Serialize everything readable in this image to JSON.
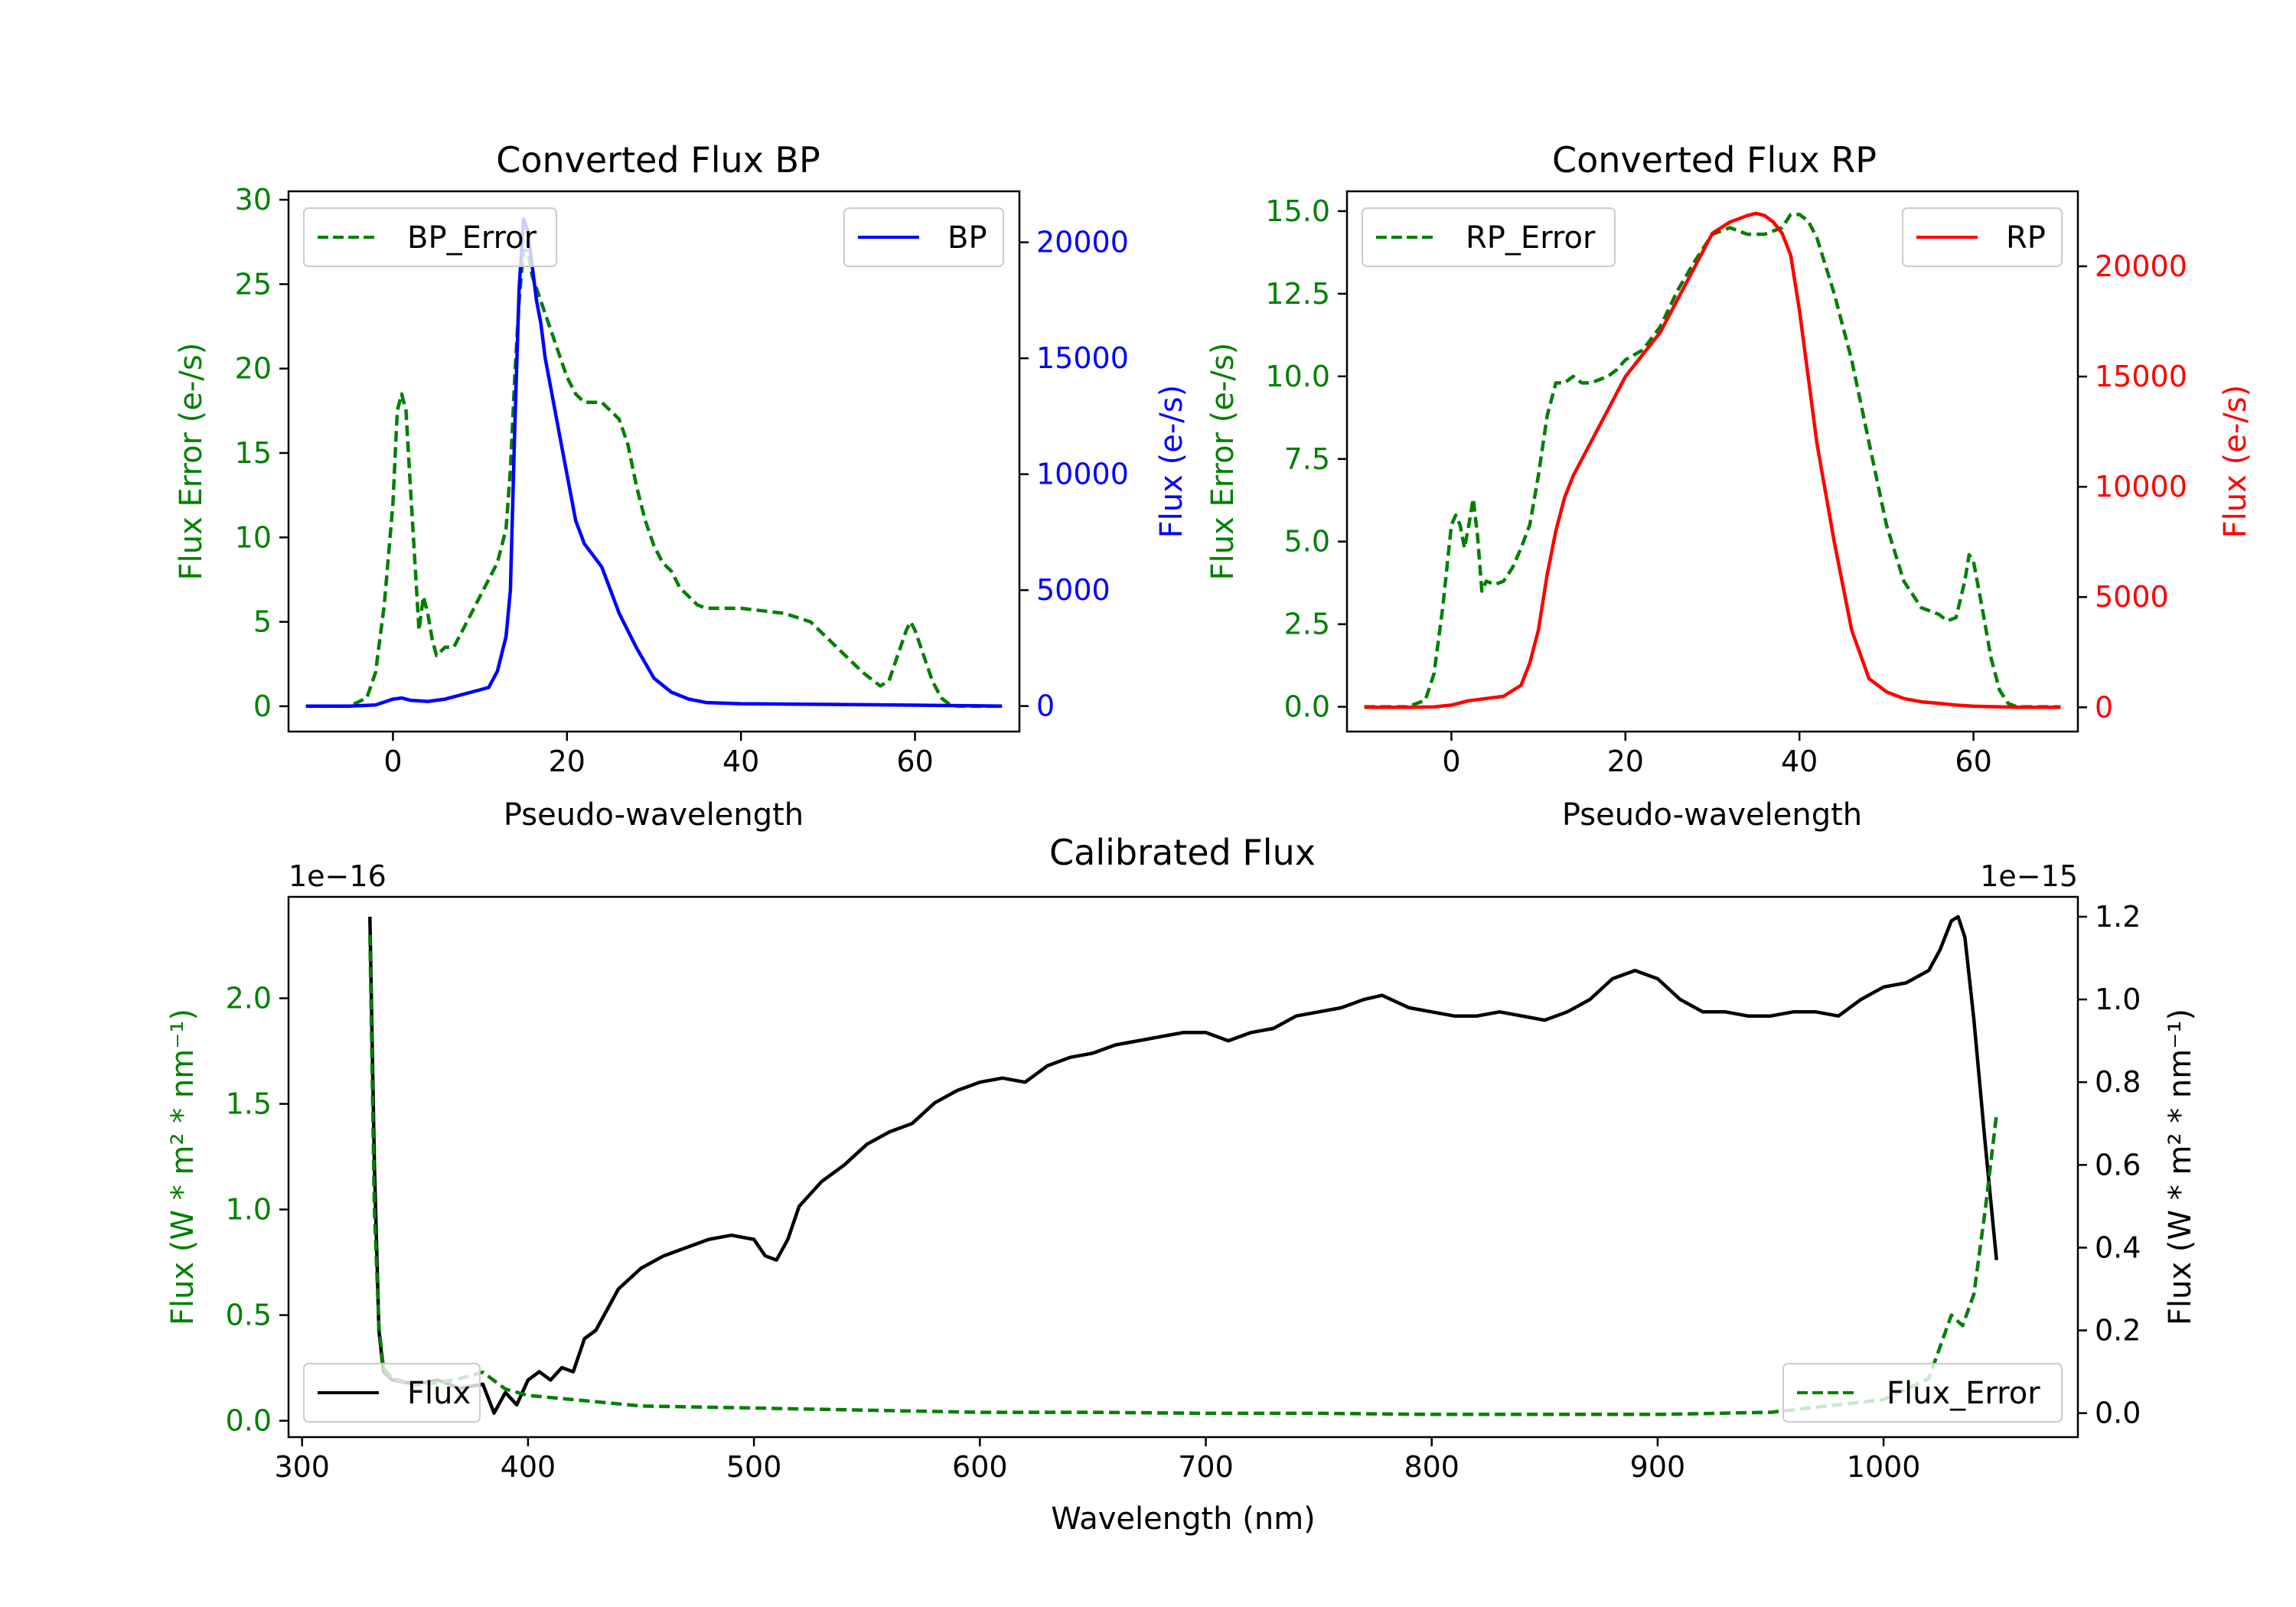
{
  "colors": {
    "error": "#008000",
    "bp": "#0000ff",
    "rp": "#ff0000",
    "flux": "#000000"
  },
  "chart_data": [
    {
      "id": "bp",
      "type": "line",
      "title": "Converted Flux BP",
      "xlabel": "Pseudo-wavelength",
      "ylabel_left": "Flux Error (e-/s)",
      "ylabel_right": "Flux (e-/s)",
      "xlim": [
        -12,
        72
      ],
      "ylim_left": [
        -1.5,
        30.5
      ],
      "ylim_right": [
        -1100,
        22200
      ],
      "xticks": [
        0,
        20,
        40,
        60
      ],
      "xtick_labels": [
        "0",
        "20",
        "40",
        "60"
      ],
      "yticks_left": [
        0,
        5,
        10,
        15,
        20,
        25,
        30
      ],
      "ytick_labels_left": [
        "0",
        "5",
        "10",
        "15",
        "20",
        "25",
        "30"
      ],
      "yticks_right": [
        0,
        5000,
        10000,
        15000,
        20000
      ],
      "ytick_labels_right": [
        "0",
        "5000",
        "10000",
        "15000",
        "20000"
      ],
      "legend_left": "BP_Error",
      "legend_right": "BP",
      "error_series": {
        "name": "BP_Error",
        "x": [
          -10,
          -5,
          -3,
          -2,
          -1,
          0,
          0.5,
          1,
          1.5,
          2,
          3,
          3.5,
          4,
          4.5,
          5,
          6,
          7,
          8,
          9,
          10,
          11,
          12,
          13,
          13.5,
          14,
          14.5,
          15,
          15.5,
          16,
          17,
          18,
          19,
          20,
          21,
          22,
          23,
          24,
          25,
          26,
          27,
          28,
          29,
          30,
          31,
          32,
          33,
          34,
          35,
          36,
          37,
          38,
          40,
          45,
          48,
          50,
          52,
          54,
          56,
          57,
          58,
          59,
          59.5,
          60,
          61,
          62,
          63,
          64,
          65,
          66,
          70
        ],
        "values": [
          0,
          0,
          0.5,
          2,
          6,
          12,
          17.5,
          18.5,
          17.5,
          13,
          4.5,
          6.5,
          5.5,
          4,
          3,
          3.5,
          3.5,
          4.5,
          5.5,
          6.5,
          7.5,
          8.5,
          10.5,
          14,
          19.5,
          24,
          27,
          27,
          25.5,
          24,
          22.5,
          21,
          19.5,
          18.5,
          18,
          18,
          18,
          17.5,
          17,
          15.5,
          13,
          11,
          9.5,
          8.5,
          8,
          7,
          6.5,
          6,
          5.8,
          5.8,
          5.8,
          5.8,
          5.5,
          5,
          4,
          3,
          2,
          1.2,
          1.5,
          3,
          4.5,
          5,
          4.5,
          3,
          1.5,
          0.5,
          0.1,
          0,
          0,
          0
        ]
      },
      "flux_series": {
        "name": "BP",
        "x": [
          -10,
          -5,
          -2,
          0,
          1,
          2,
          4,
          6,
          8,
          10,
          11,
          12,
          13,
          13.5,
          14,
          14.5,
          15,
          15.5,
          16,
          16.5,
          17,
          17.5,
          18,
          19,
          20,
          21,
          22,
          23,
          24,
          25,
          26,
          28,
          30,
          32,
          34,
          36,
          40,
          50,
          60,
          65,
          70
        ],
        "values": [
          0,
          0,
          50,
          300,
          350,
          250,
          200,
          300,
          500,
          700,
          800,
          1500,
          3000,
          5000,
          12000,
          18000,
          21000,
          20500,
          19000,
          17500,
          16500,
          15000,
          14000,
          12000,
          10000,
          8000,
          7000,
          6500,
          6000,
          5000,
          4000,
          2500,
          1200,
          600,
          300,
          150,
          100,
          70,
          40,
          20,
          0
        ]
      }
    },
    {
      "id": "rp",
      "type": "line",
      "title": "Converted Flux RP",
      "xlabel": "Pseudo-wavelength",
      "ylabel_left": "Flux Error (e-/s)",
      "ylabel_right": "Flux (e-/s)",
      "xlim": [
        -12,
        72
      ],
      "ylim_left": [
        -0.75,
        15.6
      ],
      "ylim_right": [
        -1100,
        23400
      ],
      "xticks": [
        0,
        20,
        40,
        60
      ],
      "xtick_labels": [
        "0",
        "20",
        "40",
        "60"
      ],
      "yticks_left": [
        0,
        2.5,
        5,
        7.5,
        10,
        12.5,
        15
      ],
      "ytick_labels_left": [
        "0.0",
        "2.5",
        "5.0",
        "7.5",
        "10.0",
        "12.5",
        "15.0"
      ],
      "yticks_right": [
        0,
        5000,
        10000,
        15000,
        20000
      ],
      "ytick_labels_right": [
        "0",
        "5000",
        "10000",
        "15000",
        "20000"
      ],
      "legend_left": "RP_Error",
      "legend_right": "RP",
      "error_series": {
        "name": "RP_Error",
        "x": [
          -10,
          -5,
          -3,
          -2,
          -1,
          0,
          0.5,
          1,
          1.5,
          2,
          2.5,
          3,
          3.5,
          4,
          5,
          6,
          7,
          8,
          9,
          10,
          11,
          12,
          13,
          14,
          15,
          16,
          17,
          18,
          19,
          20,
          22,
          24,
          26,
          28,
          30,
          32,
          34,
          36,
          38,
          39,
          40,
          41,
          42,
          44,
          46,
          48,
          50,
          52,
          54,
          56,
          57,
          58,
          59,
          59.5,
          60,
          61,
          62,
          63,
          64,
          65,
          70
        ],
        "values": [
          0,
          0,
          0.2,
          1,
          3,
          5.5,
          5.8,
          5.5,
          4.8,
          5.5,
          6.3,
          5.2,
          3.5,
          3.8,
          3.7,
          3.8,
          4.2,
          4.8,
          5.5,
          7,
          8.8,
          9.8,
          9.8,
          10,
          9.8,
          9.8,
          9.9,
          10,
          10.2,
          10.5,
          10.8,
          11.5,
          12.6,
          13.5,
          14.3,
          14.5,
          14.3,
          14.3,
          14.5,
          14.9,
          14.9,
          14.7,
          14.2,
          12.5,
          10.5,
          8,
          5.5,
          3.8,
          3,
          2.8,
          2.6,
          2.7,
          3.8,
          4.6,
          4.4,
          3,
          1.5,
          0.5,
          0.1,
          0,
          0
        ]
      },
      "flux_series": {
        "name": "RP",
        "x": [
          -10,
          -5,
          -2,
          0,
          2,
          4,
          6,
          8,
          9,
          10,
          11,
          12,
          13,
          14,
          16,
          18,
          20,
          22,
          24,
          26,
          28,
          30,
          32,
          34,
          35,
          36,
          37,
          38,
          39,
          40,
          41,
          42,
          44,
          46,
          48,
          50,
          52,
          54,
          56,
          58,
          60,
          65,
          70
        ],
        "values": [
          0,
          0,
          20,
          100,
          300,
          400,
          500,
          1000,
          2000,
          3500,
          6000,
          8000,
          9500,
          10500,
          12000,
          13500,
          15000,
          16000,
          17000,
          18500,
          20000,
          21500,
          22000,
          22300,
          22400,
          22300,
          22000,
          21500,
          20500,
          18000,
          15000,
          12000,
          7500,
          3500,
          1300,
          700,
          400,
          250,
          180,
          100,
          50,
          0,
          0
        ]
      }
    },
    {
      "id": "calibrated",
      "type": "line",
      "title": "Calibrated Flux",
      "xlabel": "Wavelength (nm)",
      "ylabel_left": "Flux (W * m² * nm⁻¹)",
      "ylabel_right": "Flux (W * m² * nm⁻¹)",
      "offset_left": "1e−16",
      "offset_right": "1e−15",
      "xlim": [
        294,
        1086
      ],
      "ylim_left": [
        -0.0775,
        2.48
      ],
      "ylim_right": [
        -0.058,
        1.248
      ],
      "xticks": [
        300,
        400,
        500,
        600,
        700,
        800,
        900,
        1000
      ],
      "xtick_labels": [
        "300",
        "400",
        "500",
        "600",
        "700",
        "800",
        "900",
        "1000"
      ],
      "yticks_left": [
        0,
        0.5,
        1.0,
        1.5,
        2.0
      ],
      "ytick_labels_left": [
        "0.0",
        "0.5",
        "1.0",
        "1.5",
        "2.0"
      ],
      "yticks_right": [
        0,
        0.2,
        0.4,
        0.6,
        0.8,
        1.0,
        1.2
      ],
      "ytick_labels_right": [
        "0.0",
        "0.2",
        "0.4",
        "0.6",
        "0.8",
        "1.0",
        "1.2"
      ],
      "legend_left": "Flux",
      "legend_right": "Flux_Error",
      "flux_series": {
        "name": "Flux",
        "x": [
          330,
          332,
          334,
          336,
          340,
          350,
          360,
          370,
          380,
          385,
          390,
          395,
          400,
          405,
          410,
          415,
          420,
          425,
          430,
          440,
          450,
          460,
          470,
          480,
          490,
          500,
          505,
          510,
          515,
          520,
          530,
          540,
          550,
          560,
          570,
          580,
          590,
          600,
          610,
          620,
          630,
          640,
          650,
          660,
          670,
          680,
          690,
          700,
          710,
          720,
          730,
          740,
          750,
          760,
          770,
          778,
          790,
          800,
          810,
          820,
          830,
          840,
          850,
          860,
          870,
          880,
          890,
          900,
          910,
          920,
          930,
          940,
          950,
          960,
          970,
          980,
          990,
          1000,
          1010,
          1020,
          1025,
          1030,
          1033,
          1036,
          1040,
          1045,
          1050
        ],
        "values": [
          1.2,
          0.6,
          0.2,
          0.1,
          0.08,
          0.07,
          0.08,
          0.06,
          0.07,
          0.0,
          0.05,
          0.02,
          0.08,
          0.1,
          0.08,
          0.11,
          0.1,
          0.18,
          0.2,
          0.3,
          0.35,
          0.38,
          0.4,
          0.42,
          0.43,
          0.42,
          0.38,
          0.37,
          0.42,
          0.5,
          0.56,
          0.6,
          0.65,
          0.68,
          0.7,
          0.75,
          0.78,
          0.8,
          0.81,
          0.8,
          0.84,
          0.86,
          0.87,
          0.89,
          0.9,
          0.91,
          0.92,
          0.92,
          0.9,
          0.92,
          0.93,
          0.96,
          0.97,
          0.98,
          1.0,
          1.01,
          0.98,
          0.97,
          0.96,
          0.96,
          0.97,
          0.96,
          0.95,
          0.97,
          1.0,
          1.05,
          1.07,
          1.05,
          1.0,
          0.97,
          0.97,
          0.96,
          0.96,
          0.97,
          0.97,
          0.96,
          1.0,
          1.03,
          1.04,
          1.07,
          1.12,
          1.19,
          1.2,
          1.15,
          0.95,
          0.65,
          0.37
        ]
      },
      "error_series": {
        "name": "Flux_Error",
        "x": [
          330,
          332,
          334,
          336,
          340,
          350,
          360,
          370,
          380,
          390,
          400,
          420,
          450,
          500,
          550,
          600,
          650,
          700,
          750,
          800,
          850,
          900,
          950,
          1000,
          1010,
          1020,
          1025,
          1030,
          1035,
          1040,
          1045,
          1050
        ],
        "values": [
          2.3,
          1.0,
          0.45,
          0.25,
          0.2,
          0.17,
          0.18,
          0.2,
          0.23,
          0.15,
          0.12,
          0.1,
          0.07,
          0.06,
          0.05,
          0.04,
          0.04,
          0.035,
          0.035,
          0.03,
          0.03,
          0.03,
          0.04,
          0.1,
          0.15,
          0.2,
          0.35,
          0.5,
          0.45,
          0.6,
          1.0,
          1.45
        ]
      }
    }
  ]
}
